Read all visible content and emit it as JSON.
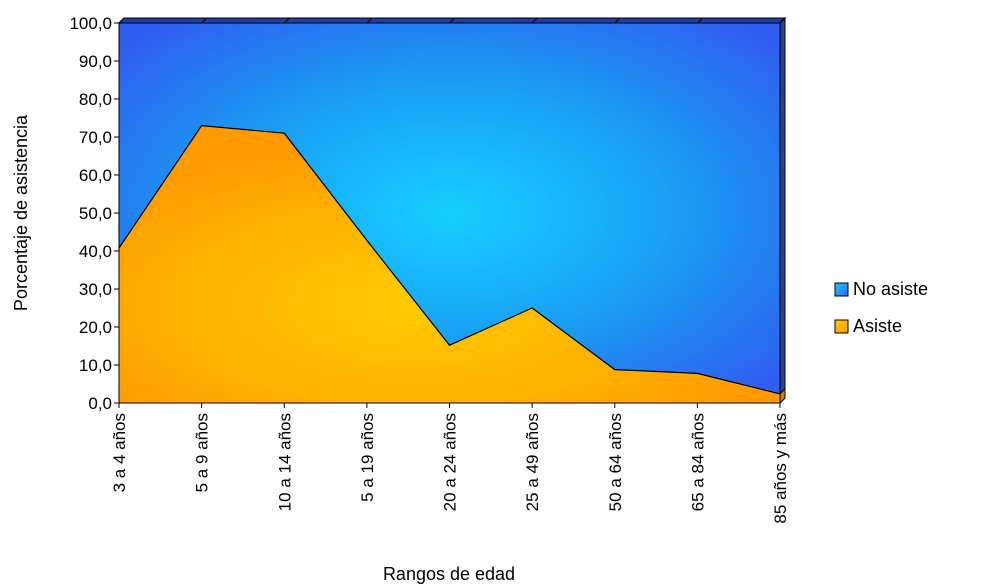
{
  "chart_data": {
    "type": "area",
    "stacked": true,
    "categories": [
      "3 a 4 años",
      "5 a 9 años",
      "10 a 14 años",
      "5 a 19 años",
      "20 a 24 años",
      "25 a  49 años",
      "50 a 64 años",
      "65 a 84 años",
      "85 años y  más"
    ],
    "series": [
      {
        "name": "No asiste",
        "values": [
          59.2,
          27.0,
          29.0,
          57.2,
          84.8,
          75.0,
          91.2,
          92.2,
          97.6
        ],
        "color": "#1a8cff"
      },
      {
        "name": "Asiste",
        "values": [
          40.8,
          73.0,
          71.0,
          42.8,
          15.2,
          25.0,
          8.8,
          7.8,
          2.4
        ],
        "color": "#ffa500"
      }
    ],
    "xlabel": "Rangos de edad",
    "ylabel": "Porcentaje de asistencia",
    "ylim": [
      0,
      100
    ],
    "yticks": [
      "0,0",
      "10,0",
      "20,0",
      "30,0",
      "40,0",
      "50,0",
      "60,0",
      "70,0",
      "80,0",
      "90,0",
      "100,0"
    ],
    "grid": false,
    "legend_position": "right"
  }
}
